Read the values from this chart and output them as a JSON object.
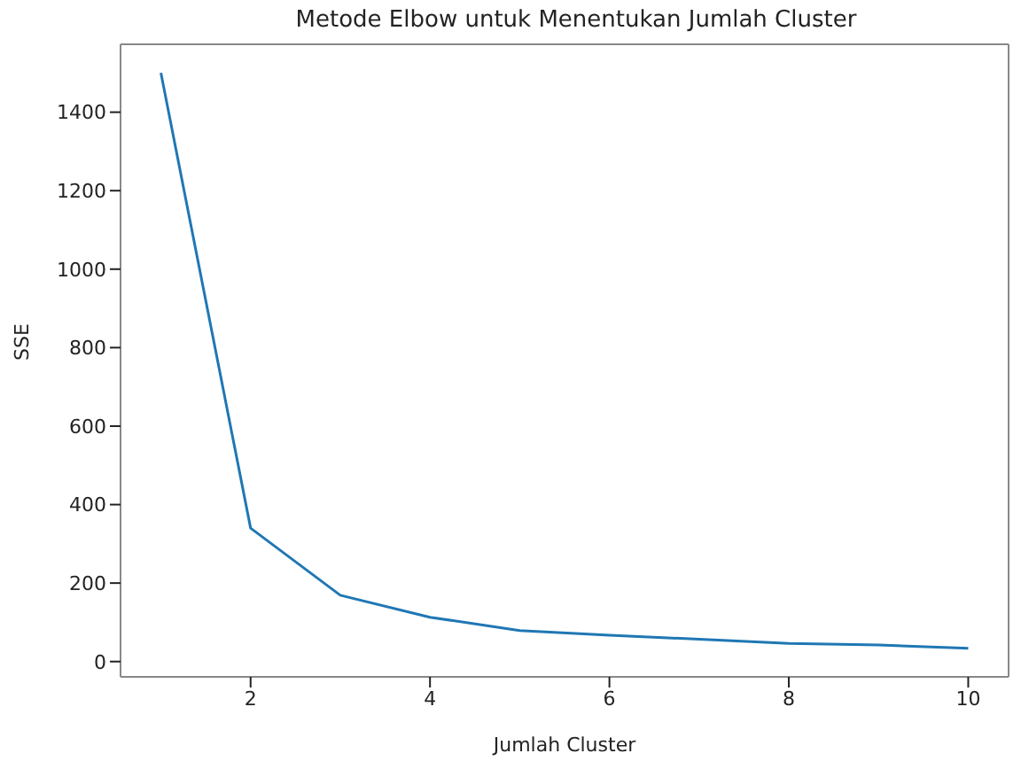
{
  "chart_data": {
    "type": "line",
    "title": "Metode Elbow untuk Menentukan Jumlah Cluster",
    "xlabel": "Jumlah Cluster",
    "ylabel": "SSE",
    "x": [
      1,
      2,
      3,
      4,
      5,
      6,
      7,
      8,
      9,
      10
    ],
    "series": [
      {
        "color": "#1f77b4",
        "values": [
          1500,
          340,
          169,
          113,
          79,
          67,
          57,
          46,
          42,
          34
        ]
      }
    ],
    "xlim": [
      0.55,
      10.45
    ],
    "xticks": [
      2,
      4,
      6,
      8,
      10
    ],
    "ylim": [
      -39,
      1573
    ],
    "yticks": [
      0,
      200,
      400,
      600,
      800,
      1000,
      1200,
      1400
    ],
    "grid": false,
    "legend": false,
    "marker": "none",
    "line_style": "solid"
  }
}
